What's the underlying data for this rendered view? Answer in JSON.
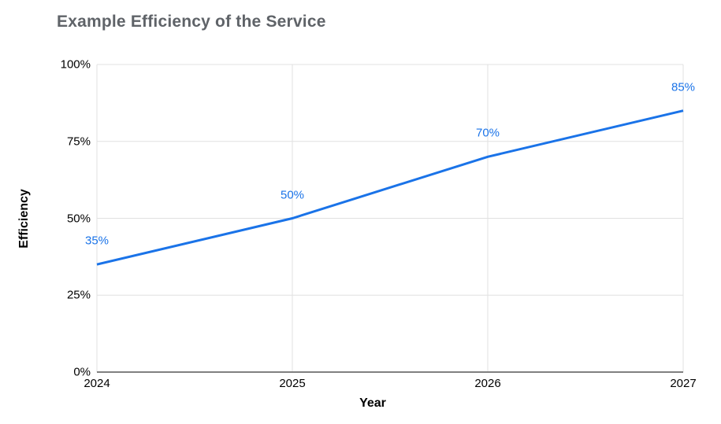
{
  "title": "Example Efficiency of the Service",
  "colors": {
    "line": "#1a73e8",
    "data_label": "#1a73e8",
    "gridline": "#e0e0e0",
    "axis_line": "#808080",
    "title_text": "#5f6368",
    "tick_text": "#000000"
  },
  "chart_data": {
    "type": "line",
    "title": "Example Efficiency of the Service",
    "xlabel": "Year",
    "ylabel": "Efficiency",
    "categories": [
      "2024",
      "2025",
      "2026",
      "2027"
    ],
    "series": [
      {
        "name": "Efficiency",
        "values": [
          35,
          50,
          70,
          85
        ]
      }
    ],
    "data_labels": [
      "35%",
      "50%",
      "70%",
      "85%"
    ],
    "ylim": [
      0,
      100
    ],
    "yticks": [
      0,
      25,
      50,
      75,
      100
    ],
    "ytick_labels": [
      "0%",
      "25%",
      "50%",
      "75%",
      "100%"
    ],
    "grid": true,
    "legend_position": "none"
  }
}
